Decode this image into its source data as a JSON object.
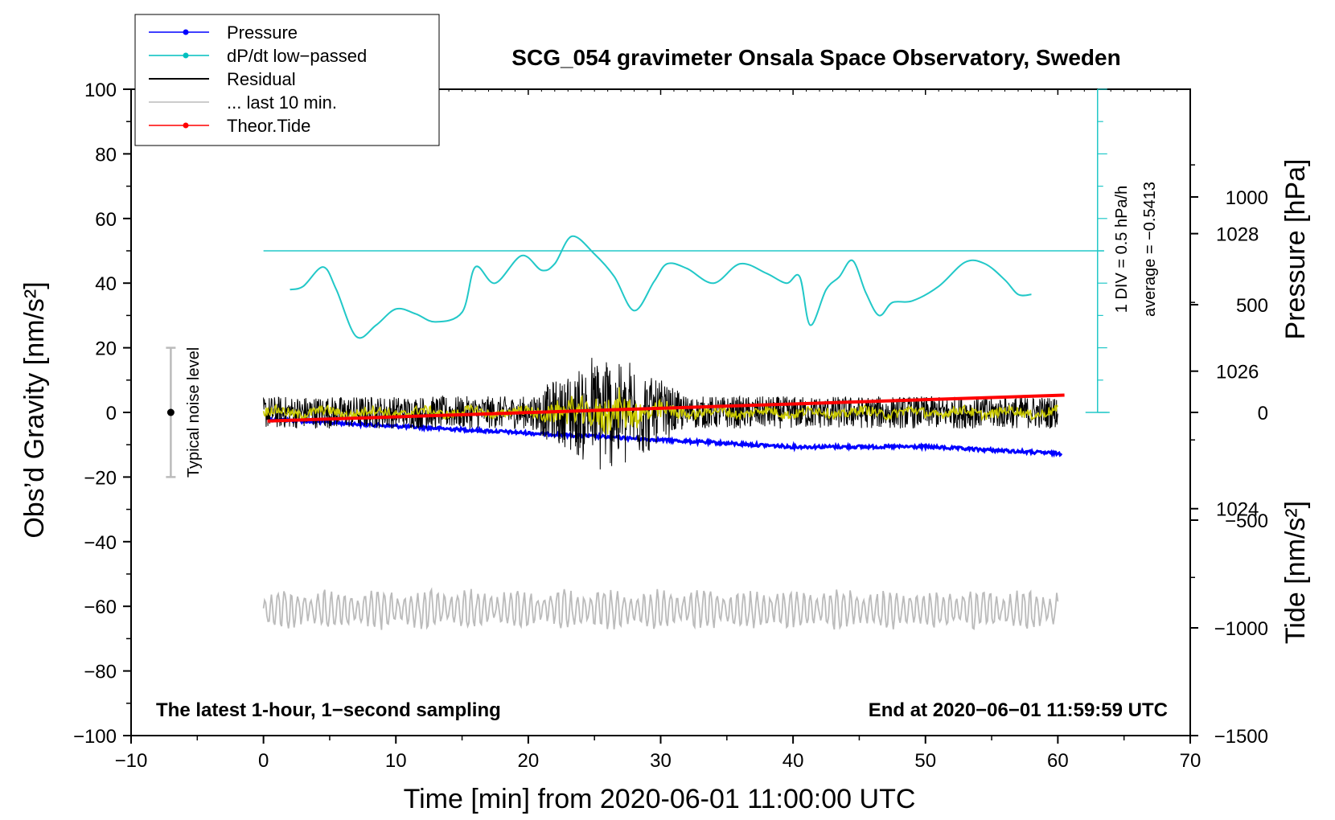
{
  "chart_data": {
    "type": "line",
    "title": "SCG_054 gravimeter Onsala Space Observatory, Sweden",
    "xlabel": "Time [min] from 2020-06-01 11:00:00 UTC",
    "ylabel_left": "Obs’d Gravity [nm/s²]",
    "ylabel_right_top": "Pressure [hPa]",
    "ylabel_right_bottom": "Tide [nm/s²]",
    "xlim": [
      -10,
      70
    ],
    "ylim": [
      -100,
      100
    ],
    "x_ticks": [
      -10,
      0,
      10,
      20,
      30,
      40,
      50,
      60,
      70
    ],
    "x_tick_labels": [
      "−10",
      "0",
      "10",
      "20",
      "30",
      "40",
      "50",
      "60",
      "70"
    ],
    "y_ticks": [
      -100,
      -80,
      -60,
      -40,
      -20,
      0,
      20,
      40,
      60,
      80,
      100
    ],
    "y_tick_labels": [
      "−100",
      "−80",
      "−60",
      "−40",
      "−20",
      "0",
      "20",
      "40",
      "60",
      "80",
      "100"
    ],
    "pressure_axis": {
      "range": [
        1020.7,
        1030.1
      ],
      "ticks": [
        1024,
        1026,
        1028
      ],
      "tick_labels": [
        "1024",
        "1026",
        "1028"
      ]
    },
    "tide_axis": {
      "range": [
        -1500,
        1500
      ],
      "ticks": [
        1000,
        500,
        0,
        -500,
        -1000,
        -1500
      ],
      "tick_labels": [
        "1000",
        "500",
        "0",
        "−500",
        "−1000",
        "−1500"
      ]
    },
    "legend": {
      "position": "top-left",
      "entries": [
        {
          "label": "Pressure",
          "color": "#0000ff",
          "marker": true
        },
        {
          "label": "dP/dt low−passed",
          "color": "#00bfbf",
          "marker": true
        },
        {
          "label": "Residual",
          "color": "#000000",
          "marker": false
        },
        {
          "label": "... last 10 min.",
          "color": "#bbbbbb",
          "marker": false
        },
        {
          "label": "Theor.Tide",
          "color": "#ff0000",
          "marker": true
        }
      ]
    },
    "annotations": {
      "noise_label": "Typical noise level",
      "noise_bar": {
        "x": -7,
        "center": 0,
        "range": [
          -20,
          20
        ]
      },
      "dpdt_scale": "1 DIV = 0.5 hPa/h",
      "dpdt_average": "average = −0.5413",
      "bottom_left": "The latest 1-hour, 1−second sampling",
      "bottom_right": "End at 2020−06−01 11:59:59 UTC"
    },
    "dpdt_reference": {
      "x_range": [
        0,
        63.5
      ],
      "y": 50,
      "scale_x": 63,
      "scale_range": [
        0,
        100
      ]
    },
    "series": [
      {
        "name": "Pressure",
        "axis": "pressure",
        "color": "#0000ff",
        "x": [
          0.5,
          10,
          20,
          30,
          40,
          50,
          60.3
        ],
        "values": [
          1025.3,
          1025.2,
          1025.1,
          1025.0,
          1024.9,
          1024.9,
          1024.8
        ]
      },
      {
        "name": "dP/dt low−passed",
        "axis": "left",
        "color": "#22c8c8",
        "x": [
          2,
          3,
          4.5,
          5.5,
          7,
          8.5,
          10,
          11.5,
          13,
          15,
          16,
          17.5,
          19.5,
          21,
          22,
          23.3,
          25,
          26.5,
          28,
          29.5,
          30.5,
          32,
          34,
          36,
          38,
          39.5,
          40.5,
          41.3,
          42.5,
          43.5,
          44.5,
          45.5,
          46.5,
          47.5,
          49,
          51,
          53,
          54.5,
          56,
          57,
          58
        ],
        "values": [
          38,
          39,
          45,
          38,
          23.5,
          27,
          32,
          30.5,
          28,
          31,
          45,
          40,
          48.5,
          44,
          46,
          54.5,
          49,
          42,
          31.5,
          40.5,
          46,
          44.5,
          40,
          46,
          43,
          40,
          42,
          27,
          38,
          42,
          47,
          37,
          30,
          34,
          34.5,
          39,
          46.5,
          46,
          41,
          36.5,
          36.5
        ]
      },
      {
        "name": "Residual",
        "axis": "left",
        "color": "#000000",
        "x_range": [
          0,
          60
        ],
        "noise_level": [
          -6,
          6
        ],
        "peak": {
          "x": [
            20,
            32
          ],
          "range": [
            -19,
            21
          ]
        }
      },
      {
        "name": "Residual smoothed",
        "axis": "left",
        "color": "#cccc00",
        "x_range": [
          0,
          60
        ],
        "noise_level": [
          -2,
          2
        ]
      },
      {
        "name": "... last 10 min.",
        "axis": "left",
        "color": "#bbbbbb",
        "x_range": [
          0,
          60
        ],
        "center": -61,
        "range": [
          -68,
          -55
        ]
      },
      {
        "name": "Theor.Tide",
        "axis": "tide",
        "color": "#ff0000",
        "x": [
          0.3,
          60.5
        ],
        "values": [
          -40,
          80
        ]
      }
    ]
  }
}
